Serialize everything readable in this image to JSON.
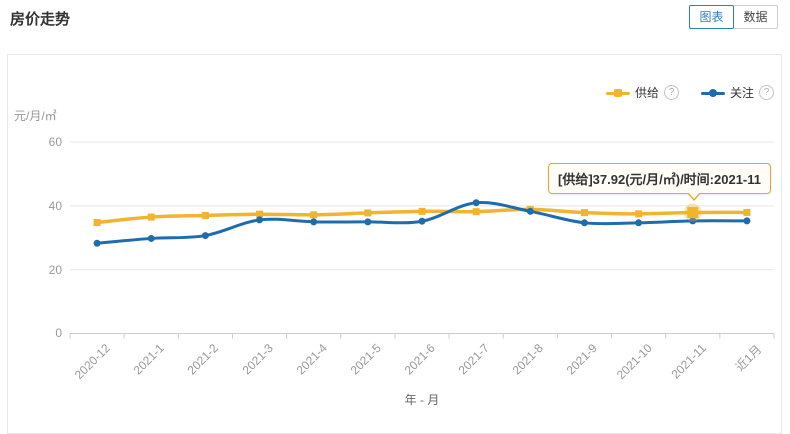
{
  "page": {
    "title": "房价走势"
  },
  "toolbar": {
    "chart_tab": "图表",
    "data_tab": "数据"
  },
  "legend": {
    "help_glyph": "?"
  },
  "tooltip": {
    "text": "[供给]37.92(元/月/㎡)/时间:2021-11"
  },
  "colors": {
    "supply": "#f1b42e",
    "attention": "#1e6cb0",
    "tab_active": "#2e7fc1",
    "grid": "#e8e8e8",
    "axis": "#cccccc",
    "tooltip_border": "#dfa63a",
    "tooltip_bg": "#fffdf6"
  },
  "chart_data": {
    "type": "line",
    "title": "房价走势",
    "xlabel": "年 - 月",
    "ylabel": "元/月/㎡",
    "ylim": [
      0,
      60
    ],
    "yticks": [
      0,
      20,
      40,
      60
    ],
    "grid": true,
    "legend_position": "top-right",
    "categories": [
      "2020-12",
      "2021-1",
      "2021-2",
      "2021-3",
      "2021-4",
      "2021-5",
      "2021-6",
      "2021-7",
      "2021-8",
      "2021-9",
      "2021-10",
      "2021-11",
      "近1月"
    ],
    "series": [
      {
        "key": "supply",
        "name": "供给",
        "color": "#f1b42e",
        "symbol": "square",
        "smooth": true,
        "values": [
          34.8,
          36.5,
          37.0,
          37.4,
          37.2,
          37.8,
          38.3,
          38.2,
          38.9,
          37.9,
          37.5,
          37.92,
          37.95
        ]
      },
      {
        "key": "attention",
        "name": "关注",
        "color": "#1e6cb0",
        "symbol": "circle",
        "smooth": true,
        "values": [
          28.3,
          29.8,
          30.7,
          35.6,
          35.0,
          35.0,
          35.2,
          41.0,
          38.3,
          34.7,
          34.7,
          35.3,
          35.3
        ]
      }
    ],
    "highlight": {
      "series": "供给",
      "category": "2021-11",
      "value": 37.92
    }
  }
}
